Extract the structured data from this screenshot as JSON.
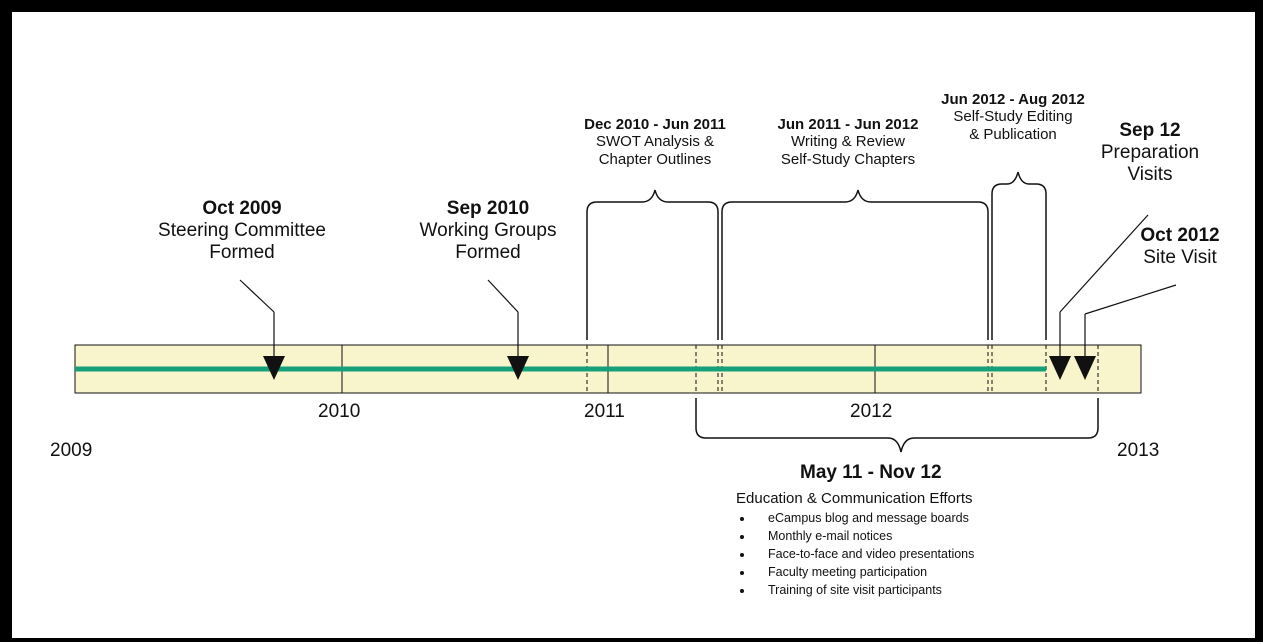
{
  "years": [
    "2009",
    "2010",
    "2011",
    "2012",
    "2013"
  ],
  "events": [
    {
      "date": "Oct 2009",
      "lines": [
        "Steering Committee",
        "Formed"
      ]
    },
    {
      "date": "Sep 2010",
      "lines": [
        "Working Groups",
        "Formed"
      ]
    },
    {
      "date": "Sep 12",
      "lines": [
        "Preparation",
        "Visits"
      ]
    },
    {
      "date": "Oct 2012",
      "lines": [
        "Site Visit"
      ]
    }
  ],
  "ranges": [
    {
      "date": "Dec 2010 - Jun 2011",
      "lines": [
        "SWOT Analysis &",
        "Chapter Outlines"
      ]
    },
    {
      "date": "Jun 2011 - Jun 2012",
      "lines": [
        "Writing & Review",
        "Self-Study Chapters"
      ]
    },
    {
      "date": "Jun 2012 - Aug 2012",
      "lines": [
        "Self-Study Editing",
        "& Publication"
      ]
    }
  ],
  "communication": {
    "date": "May 11 - Nov 12",
    "title": "Education & Communication Efforts",
    "items": [
      "eCampus blog and message boards",
      "Monthly e-mail notices",
      "Face-to-face and video presentations",
      "Faculty meeting participation",
      "Training of site visit participants"
    ]
  },
  "colors": {
    "bar_fill": "#f8f4cc",
    "progress_line": "#16a07a",
    "stroke": "#111111"
  }
}
